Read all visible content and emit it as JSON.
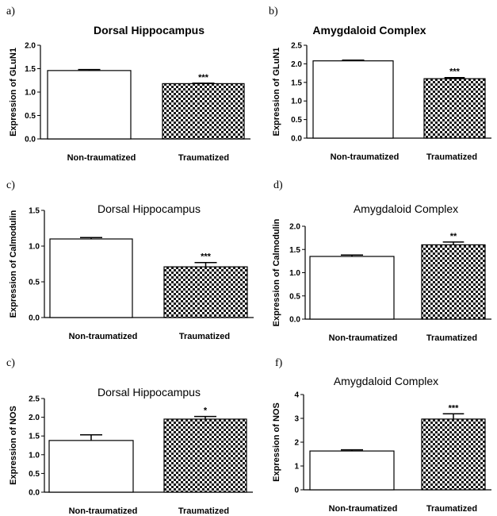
{
  "chart_data": [
    {
      "panel": "a)",
      "title": "Dorsal Hippocampus",
      "title_weight": "bold",
      "type": "bar",
      "ylabel": "Expression of GLuN1",
      "categories": [
        "Non-traumatized",
        "Traumatized"
      ],
      "values": [
        1.46,
        1.18
      ],
      "errors": [
        0.02,
        0.01
      ],
      "ylim": [
        0,
        2.0
      ],
      "yticks": [
        "0.0",
        "0.5",
        "1.0",
        "1.5",
        "2.0"
      ],
      "significance": [
        "",
        "***"
      ]
    },
    {
      "panel": "b)",
      "title": "Amygdaloid Complex",
      "title_weight": "bold",
      "type": "bar",
      "ylabel": "Expression of GLuN1",
      "categories": [
        "Non-traumatized",
        "Traumatized"
      ],
      "values": [
        2.08,
        1.6
      ],
      "errors": [
        0.02,
        0.03
      ],
      "ylim": [
        0,
        2.5
      ],
      "yticks": [
        "0.0",
        "0.5",
        "1.0",
        "1.5",
        "2.0",
        "2.5"
      ],
      "significance": [
        "",
        "***"
      ]
    },
    {
      "panel": "c)",
      "title": "Dorsal Hippocampus",
      "title_weight": "normal",
      "type": "bar",
      "ylabel": "Expression of Calmodulin",
      "categories": [
        "Non-traumatized",
        "Traumatized"
      ],
      "values": [
        1.1,
        0.71
      ],
      "errors": [
        0.02,
        0.06
      ],
      "ylim": [
        0,
        1.5
      ],
      "yticks": [
        "0.0",
        "0.5",
        "1.0",
        "1.5"
      ],
      "significance": [
        "",
        "***"
      ]
    },
    {
      "panel": "d)",
      "title": "Amygdaloid Complex",
      "title_weight": "normal",
      "type": "bar",
      "ylabel": "Expression of Calmodulin",
      "categories": [
        "Non-traumatized",
        "Traumatized"
      ],
      "values": [
        1.35,
        1.6
      ],
      "errors": [
        0.03,
        0.06
      ],
      "ylim": [
        0,
        2.0
      ],
      "yticks": [
        "0.0",
        "0.5",
        "1.0",
        "1.5",
        "2.0"
      ],
      "significance": [
        "",
        "**"
      ]
    },
    {
      "panel": "c)",
      "title": "Dorsal Hippocampus",
      "title_weight": "normal",
      "type": "bar",
      "ylabel": "Expression of NOS",
      "categories": [
        "Non-traumatized",
        "Traumatized"
      ],
      "values": [
        1.38,
        1.95
      ],
      "errors": [
        0.15,
        0.07
      ],
      "ylim": [
        0,
        2.5
      ],
      "yticks": [
        "0.0",
        "0.5",
        "1.0",
        "1.5",
        "2.0",
        "2.5"
      ],
      "significance": [
        "",
        "*"
      ]
    },
    {
      "panel": "f)",
      "title": "Amygdaloid Complex",
      "title_weight": "normal",
      "type": "bar",
      "ylabel": "Expression of NOS",
      "categories": [
        "Non-traumatized",
        "Traumatized"
      ],
      "values": [
        1.63,
        2.97
      ],
      "errors": [
        0.05,
        0.22
      ],
      "ylim": [
        0,
        4
      ],
      "yticks": [
        "0",
        "1",
        "2",
        "3",
        "4"
      ],
      "significance": [
        "",
        "***"
      ]
    }
  ]
}
